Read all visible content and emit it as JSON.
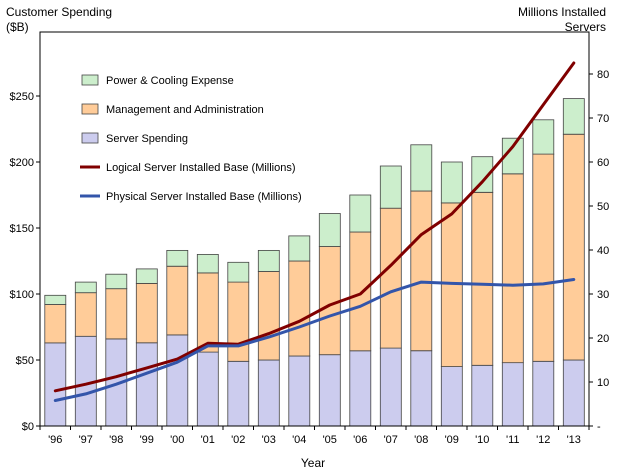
{
  "chart_data": {
    "type": "bar",
    "stacked": true,
    "left_axis_label_line1": "Customer Spending",
    "left_axis_label_line2": "($B)",
    "right_axis_label_line1": "Millions Installed",
    "right_axis_label_line2": "Servers",
    "xlabel": "Year",
    "categories": [
      "'96",
      "'97",
      "'98",
      "'99",
      "'00",
      "'01",
      "'02",
      "'03",
      "'04",
      "'05",
      "'06",
      "'07",
      "'08",
      "'09",
      "'10",
      "'11",
      "'12",
      "'13"
    ],
    "left_ticks": [
      "$0",
      "$50",
      "$100",
      "$150",
      "$200",
      "$250"
    ],
    "right_ticks": [
      "-",
      "10",
      "20",
      "30",
      "40",
      "50",
      "60",
      "70",
      "80"
    ],
    "ylim_left": [
      0,
      300
    ],
    "ylim_right": [
      0,
      90
    ],
    "bar_series": [
      {
        "name": "Server Spending",
        "color": "#ccccee",
        "values": [
          63,
          68,
          66,
          63,
          69,
          56,
          49,
          50,
          53,
          54,
          57,
          59,
          57,
          45,
          46,
          48,
          49,
          50
        ]
      },
      {
        "name": "Management and Administration",
        "color": "#ffcc99",
        "values": [
          29,
          33,
          38,
          45,
          52,
          60,
          60,
          67,
          72,
          82,
          90,
          106,
          121,
          124,
          131,
          143,
          157,
          171
        ]
      },
      {
        "name": "Power & Cooling Expense",
        "color": "#cceecc",
        "values": [
          7,
          8,
          11,
          11,
          12,
          14,
          15,
          16,
          19,
          25,
          28,
          32,
          35,
          31,
          27,
          27,
          26,
          27
        ]
      }
    ],
    "line_series": [
      {
        "name": "Logical Server Installed Base (Millions)",
        "color": "#800000",
        "values": [
          8,
          9.5,
          11.2,
          13.2,
          15.2,
          18.8,
          18.6,
          21,
          23.8,
          27.5,
          30,
          36.5,
          43.5,
          48.2,
          55.5,
          63.5,
          73,
          82.5
        ]
      },
      {
        "name": "Physical Server Installed Base (Millions)",
        "color": "#3355aa",
        "values": [
          5.8,
          7.3,
          9.5,
          12,
          14.5,
          18.2,
          18.2,
          20.2,
          22.5,
          25,
          27.2,
          30.5,
          32.7,
          32.4,
          32.2,
          32,
          32.3,
          33.3
        ]
      }
    ],
    "legend": [
      {
        "label": "Power & Cooling Expense",
        "kind": "box",
        "color": "#cceecc"
      },
      {
        "label": "Management and Administration",
        "kind": "box",
        "color": "#ffcc99"
      },
      {
        "label": "Server Spending",
        "kind": "box",
        "color": "#ccccee"
      },
      {
        "label": "Logical Server Installed Base (Millions)",
        "kind": "line",
        "color": "#800000"
      },
      {
        "label": "Physical Server Installed Base (Millions)",
        "kind": "line",
        "color": "#3355aa"
      }
    ],
    "legend_placement": "top-left",
    "grid": false
  }
}
